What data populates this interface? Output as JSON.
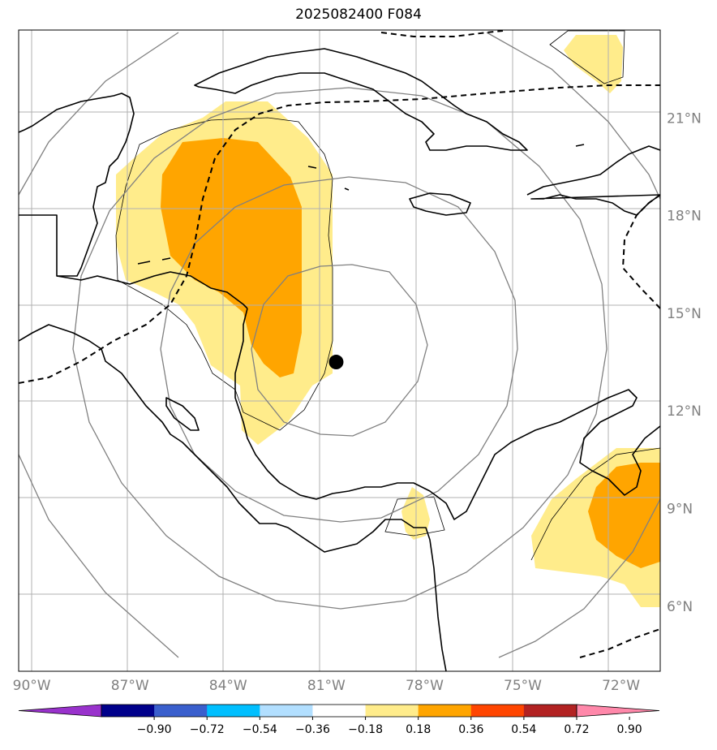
{
  "title": "2025082400 F084",
  "map": {
    "lon_range": [
      -90.4,
      -70.8
    ],
    "lat_range": [
      4,
      23.7
    ],
    "lon_ticks": [
      {
        "value": -90,
        "label": "90°W"
      },
      {
        "value": -87,
        "label": "87°W"
      },
      {
        "value": -84,
        "label": "84°W"
      },
      {
        "value": -81,
        "label": "81°W"
      },
      {
        "value": -78,
        "label": "78°W"
      },
      {
        "value": -75,
        "label": "75°W"
      },
      {
        "value": -72,
        "label": "72°W"
      }
    ],
    "lat_ticks": [
      {
        "value": 6,
        "label": "6°N"
      },
      {
        "value": 9,
        "label": "9°N"
      },
      {
        "value": 12,
        "label": "12°N"
      },
      {
        "value": 15,
        "label": "15°N"
      },
      {
        "value": 18,
        "label": "18°N"
      },
      {
        "value": 21,
        "label": "21°N"
      }
    ],
    "storm_center": {
      "lon": -80.7,
      "lat": 13.5
    },
    "colors": {
      "light_positive": "#ffec8b",
      "orange": "#ffa500",
      "grid": "#b0b0b0",
      "range_rings": "#808080",
      "coast": "#000000"
    }
  },
  "colorbar": {
    "colors": [
      "#9932cc",
      "#00008b",
      "#3a5fcd",
      "#00bfff",
      "#b2dfff",
      "#ffffff",
      "#ffec8b",
      "#ffa500",
      "#ff4500",
      "#b22222",
      "#ff88aa"
    ],
    "labels": [
      "−0.90",
      "−0.72",
      "−0.54",
      "−0.36",
      "−0.18",
      "0.18",
      "0.36",
      "0.54",
      "0.72",
      "0.90"
    ]
  }
}
